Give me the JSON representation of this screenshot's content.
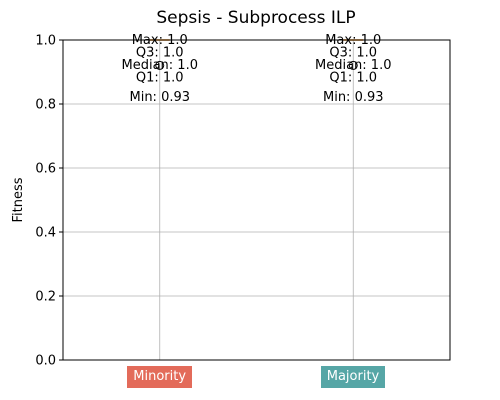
{
  "chart_data": {
    "type": "box",
    "title": "Sepsis - Subprocess ILP",
    "xlabel": "",
    "ylabel": "Fitness",
    "ylim": [
      0,
      1.0
    ],
    "yticks": [
      "0.0",
      "0.2",
      "0.4",
      "0.6",
      "0.8",
      "1.0"
    ],
    "grid": true,
    "categories": [
      "Minority",
      "Majority"
    ],
    "category_colors": [
      "#e36b5a",
      "#56a6a6"
    ],
    "boxes": [
      {
        "category": "Minority",
        "min": 0.93,
        "q1": 1.0,
        "median": 1.0,
        "q3": 1.0,
        "max": 1.0,
        "outliers": [
          0.93
        ],
        "annotations": [
          "Max: 1.0",
          "Q3: 1.0",
          "Median: 1.0",
          "Q1: 1.0",
          "Min: 0.93"
        ]
      },
      {
        "category": "Majority",
        "min": 0.93,
        "q1": 1.0,
        "median": 1.0,
        "q3": 1.0,
        "max": 1.0,
        "outliers": [
          0.93
        ],
        "annotations": [
          "Max: 1.0",
          "Q3: 1.0",
          "Median: 1.0",
          "Q1: 1.0",
          "Min: 0.93"
        ]
      }
    ]
  }
}
